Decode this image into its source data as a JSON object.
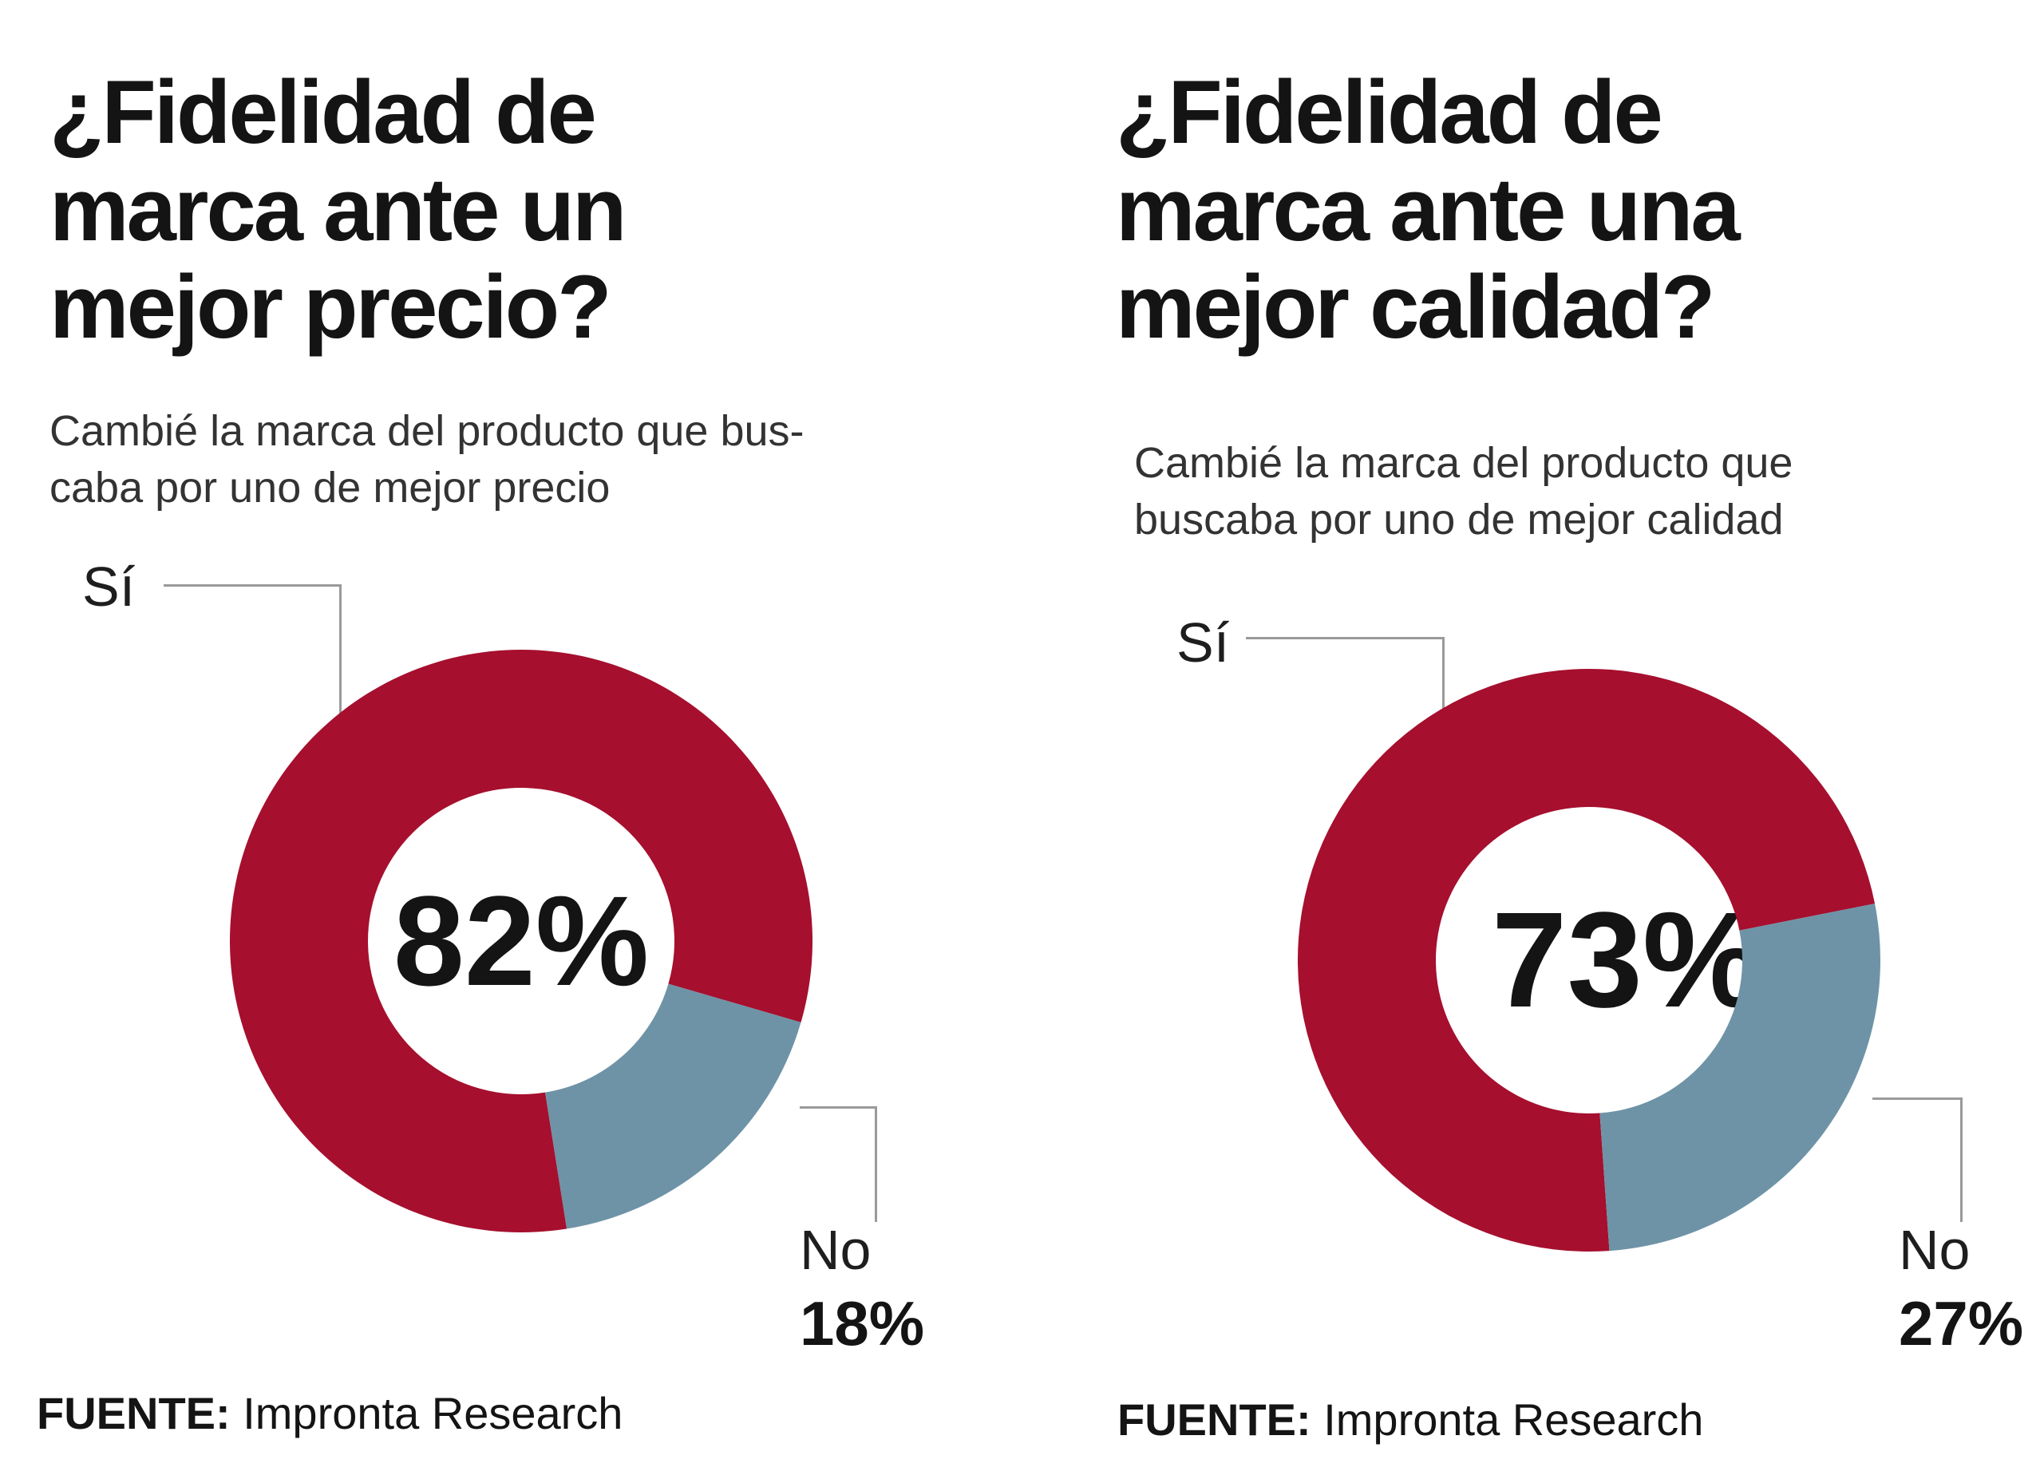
{
  "chart_data": [
    {
      "type": "pie",
      "variant": "donut",
      "title": "¿Fidelidad de\nmarca ante un\nmejor precio?",
      "subtitle": "Cambié la marca del producto que bus-\ncaba por uno de mejor precio",
      "center_label": "82%",
      "rotation": 171,
      "legend_position": "callout-lines",
      "slices": [
        {
          "label": "Sí",
          "value": 82,
          "color": "#a60f2e"
        },
        {
          "label": "No",
          "value": 18,
          "color": "#6e93a6",
          "pct_label": "18%"
        }
      ],
      "source_label": "FUENTE:",
      "source": "Impronta Research"
    },
    {
      "type": "pie",
      "variant": "donut",
      "title": "¿Fidelidad de\nmarca ante una\nmejor calidad?",
      "subtitle": "Cambié la marca del producto que\nbuscaba por uno de mejor calidad",
      "center_label": "73%",
      "rotation": 176,
      "legend_position": "callout-lines",
      "slices": [
        {
          "label": "Sí",
          "value": 73,
          "color": "#a60f2e"
        },
        {
          "label": "No",
          "value": 27,
          "color": "#6e93a6",
          "pct_label": "27%"
        }
      ],
      "source_label": "FUENTE:",
      "source": "Impronta Research"
    }
  ],
  "colors": {
    "yes_segment": "#a60f2e",
    "no_segment": "#6e93a6",
    "leader_line": "#9a9a9a",
    "text": "#141414",
    "background": "#ffffff"
  }
}
